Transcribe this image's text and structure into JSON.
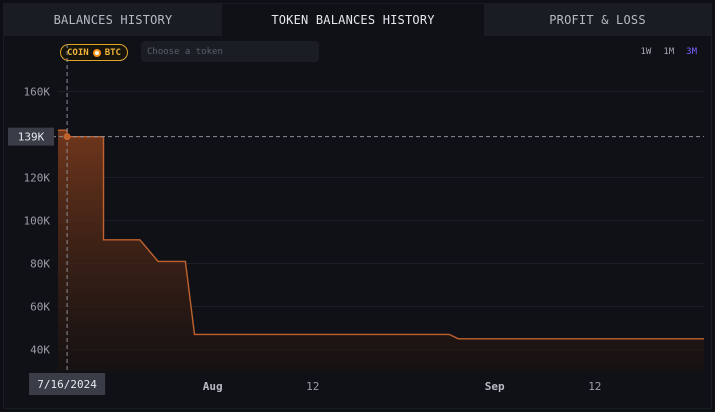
{
  "tabs": [
    {
      "label": "BALANCES HISTORY",
      "active": false
    },
    {
      "label": "TOKEN BALANCES HISTORY",
      "active": true
    },
    {
      "label": "PROFIT & LOSS",
      "active": false
    }
  ],
  "toolbar": {
    "coin_label": "COIN",
    "token_symbol": "BTC",
    "token_input_value": "",
    "token_input_placeholder": "Choose a token",
    "ranges": [
      {
        "label": "1W",
        "active": false
      },
      {
        "label": "1M",
        "active": false
      },
      {
        "label": "3M",
        "active": true
      }
    ]
  },
  "crosshair": {
    "value_label": "139K",
    "date_label": "7/16/2024",
    "value": 139000,
    "date": "2024-07-16"
  },
  "colors": {
    "line": "#c0622e",
    "fill_top": "#7a3a1c",
    "fill_bottom": "#1a1210",
    "accent": "#7b61ff",
    "coin_badge": "#e1a52a"
  },
  "chart_data": {
    "type": "area",
    "y_ticks": [
      {
        "label": "40K",
        "value": 40000
      },
      {
        "label": "60K",
        "value": 60000
      },
      {
        "label": "80K",
        "value": 80000
      },
      {
        "label": "100K",
        "value": 100000
      },
      {
        "label": "120K",
        "value": 120000
      },
      {
        "label": "160K",
        "value": 160000
      }
    ],
    "ylim": [
      30000,
      170000
    ],
    "x_ticks": [
      {
        "label": "Aug",
        "date": "2024-08-01",
        "emphasis": true
      },
      {
        "label": "12",
        "date": "2024-08-12",
        "emphasis": false
      },
      {
        "label": "Sep",
        "date": "2024-09-01",
        "emphasis": true
      },
      {
        "label": "12",
        "date": "2024-09-12",
        "emphasis": false
      }
    ],
    "xlim": [
      "2024-07-15",
      "2024-09-24"
    ],
    "grid": true,
    "series": [
      {
        "points": [
          {
            "x": "2024-07-15",
            "y": 142000
          },
          {
            "x": "2024-07-16",
            "y": 142000
          },
          {
            "x": "2024-07-16",
            "y": 139000
          },
          {
            "x": "2024-07-20",
            "y": 139000
          },
          {
            "x": "2024-07-20",
            "y": 91000
          },
          {
            "x": "2024-07-24",
            "y": 91000
          },
          {
            "x": "2024-07-26",
            "y": 81000
          },
          {
            "x": "2024-07-29",
            "y": 81000
          },
          {
            "x": "2024-07-30",
            "y": 47000
          },
          {
            "x": "2024-08-27",
            "y": 47000
          },
          {
            "x": "2024-08-28",
            "y": 45000
          },
          {
            "x": "2024-09-24",
            "y": 45000
          }
        ]
      }
    ]
  }
}
